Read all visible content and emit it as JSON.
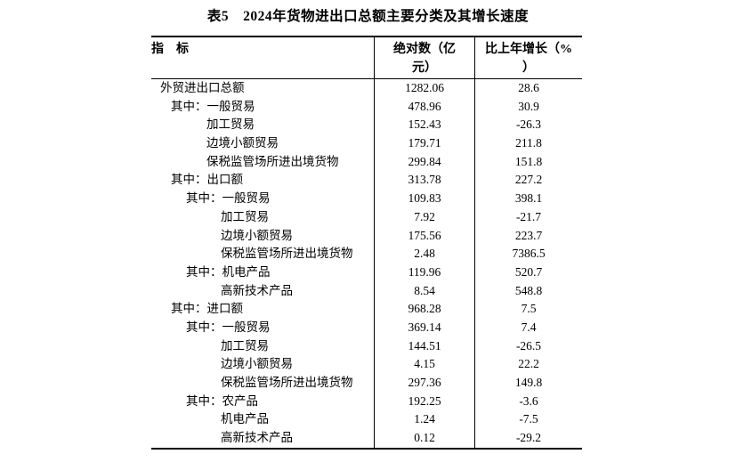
{
  "page": {
    "background_color": "#ffffff",
    "text_color": "#000000",
    "border_color": "#000000"
  },
  "title": "表5　2024年货物进出口总额主要分类及其增长速度",
  "table": {
    "headers": {
      "indicator": "指　标",
      "absolute": "绝对数（亿\n元）",
      "growth": "比上年增长（%\n）"
    },
    "rows": [
      {
        "level": 0,
        "label": "其中：",
        "absolute": "",
        "growth": ""
      }
    ]
  }
}
